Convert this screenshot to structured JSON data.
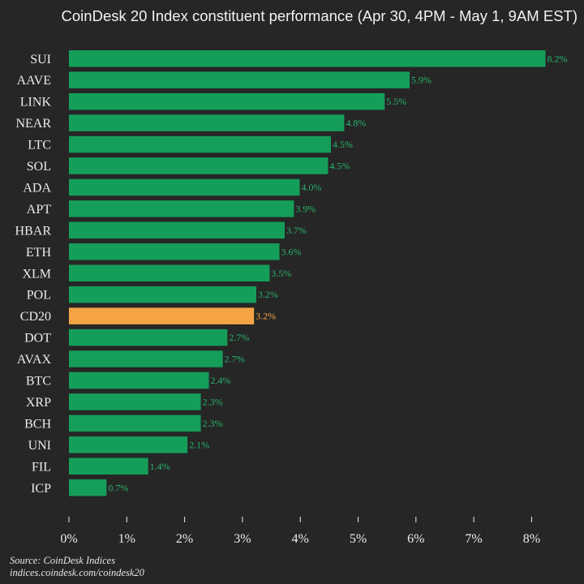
{
  "title": "CoinDesk 20 Index constituent performance (Apr 30, 4PM - May 1, 9AM EST)",
  "source_line": "Source: CoinDesk Indices",
  "url_line": "indices.coindesk.com/coindesk20",
  "colors": {
    "background": "#262626",
    "bar": "#159e5a",
    "highlight_bar": "#f5a445",
    "value_label": "#28b46a",
    "highlight_label": "#f5a445",
    "axis": "#ececec"
  },
  "chart_data": {
    "type": "bar",
    "orientation": "horizontal",
    "title": "CoinDesk 20 Index constituent performance (Apr 30, 4PM - May 1, 9AM EST)",
    "xlim": [
      0,
      8.5
    ],
    "x_ticks": [
      0,
      1,
      2,
      3,
      4,
      5,
      6,
      7,
      8
    ],
    "x_tick_labels": [
      "0%",
      "1%",
      "2%",
      "3%",
      "4%",
      "5%",
      "6%",
      "7%",
      "8%"
    ],
    "grid": false,
    "highlight": "CD20",
    "categories": [
      "SUI",
      "AAVE",
      "LINK",
      "NEAR",
      "LTC",
      "SOL",
      "ADA",
      "APT",
      "HBAR",
      "ETH",
      "XLM",
      "POL",
      "CD20",
      "DOT",
      "AVAX",
      "BTC",
      "XRP",
      "BCH",
      "UNI",
      "FIL",
      "ICP"
    ],
    "values": [
      8.24,
      5.89,
      5.46,
      4.76,
      4.53,
      4.48,
      3.99,
      3.89,
      3.73,
      3.64,
      3.47,
      3.24,
      3.2,
      2.74,
      2.66,
      2.42,
      2.28,
      2.28,
      2.05,
      1.37,
      0.65
    ],
    "value_labels": [
      "8.2%",
      "5.9%",
      "5.5%",
      "4.8%",
      "4.5%",
      "4.5%",
      "4.0%",
      "3.9%",
      "3.7%",
      "3.6%",
      "3.5%",
      "3.2%",
      "3.2%",
      "2.7%",
      "2.7%",
      "2.4%",
      "2.3%",
      "2.3%",
      "2.1%",
      "1.4%",
      "0.7%"
    ]
  }
}
